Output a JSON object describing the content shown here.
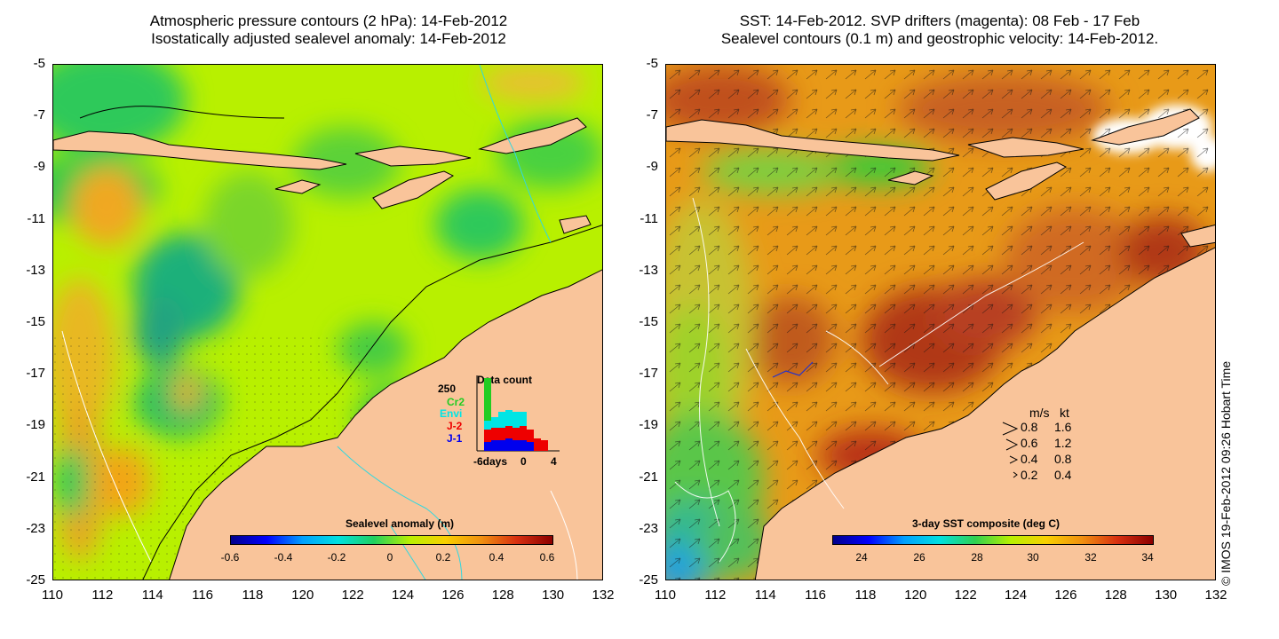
{
  "left_panel": {
    "title_line1": "Atmospheric pressure contours (2 hPa): 14-Feb-2012",
    "title_line2": "Isostatically adjusted sealevel anomaly: 14-Feb-2012",
    "colorbar_title": "Sealevel anomaly (m)",
    "colorbar_ticks": [
      "-0.6",
      "-0.4",
      "-0.2",
      "0",
      "0.2",
      "0.4",
      "0.6"
    ],
    "inset": {
      "title": "Data count",
      "ymax_label": "250",
      "missions": [
        {
          "name": "Cr2",
          "color": "#22cc22"
        },
        {
          "name": "Envi",
          "color": "#00e5e5"
        },
        {
          "name": "J-2",
          "color": "#ee0000"
        },
        {
          "name": "J-1",
          "color": "#0000ee"
        }
      ],
      "xtick_labels": [
        "-6days",
        "0",
        "4"
      ]
    }
  },
  "right_panel": {
    "title_line1": "SST: 14-Feb-2012. SVP drifters (magenta): 08 Feb - 17 Feb",
    "title_line2": "Sealevel contours (0.1 m) and geostrophic velocity: 14-Feb-2012.",
    "colorbar_title": "3-day SST composite (deg C)",
    "colorbar_ticks": [
      "24",
      "26",
      "28",
      "30",
      "32",
      "34"
    ],
    "velocity_legend": {
      "header_ms": "m/s",
      "header_kt": "kt",
      "rows": [
        {
          "ms": "0.8",
          "kt": "1.6"
        },
        {
          "ms": "0.6",
          "kt": "1.2"
        },
        {
          "ms": "0.4",
          "kt": "0.8"
        },
        {
          "ms": "0.2",
          "kt": "0.4"
        }
      ]
    }
  },
  "axes": {
    "y_ticks": [
      "-5",
      "-7",
      "-9",
      "-11",
      "-13",
      "-15",
      "-17",
      "-19",
      "-21",
      "-23",
      "-25"
    ],
    "x_ticks": [
      "110",
      "112",
      "114",
      "116",
      "118",
      "120",
      "122",
      "124",
      "126",
      "128",
      "130",
      "132"
    ]
  },
  "copyright": "© IMOS 19-Feb-2012 09:26 Hobart Time",
  "colors": {
    "land": "#f9c49a",
    "ocean_sla_base": "#b8f000",
    "sst_base": "#e89a18"
  }
}
